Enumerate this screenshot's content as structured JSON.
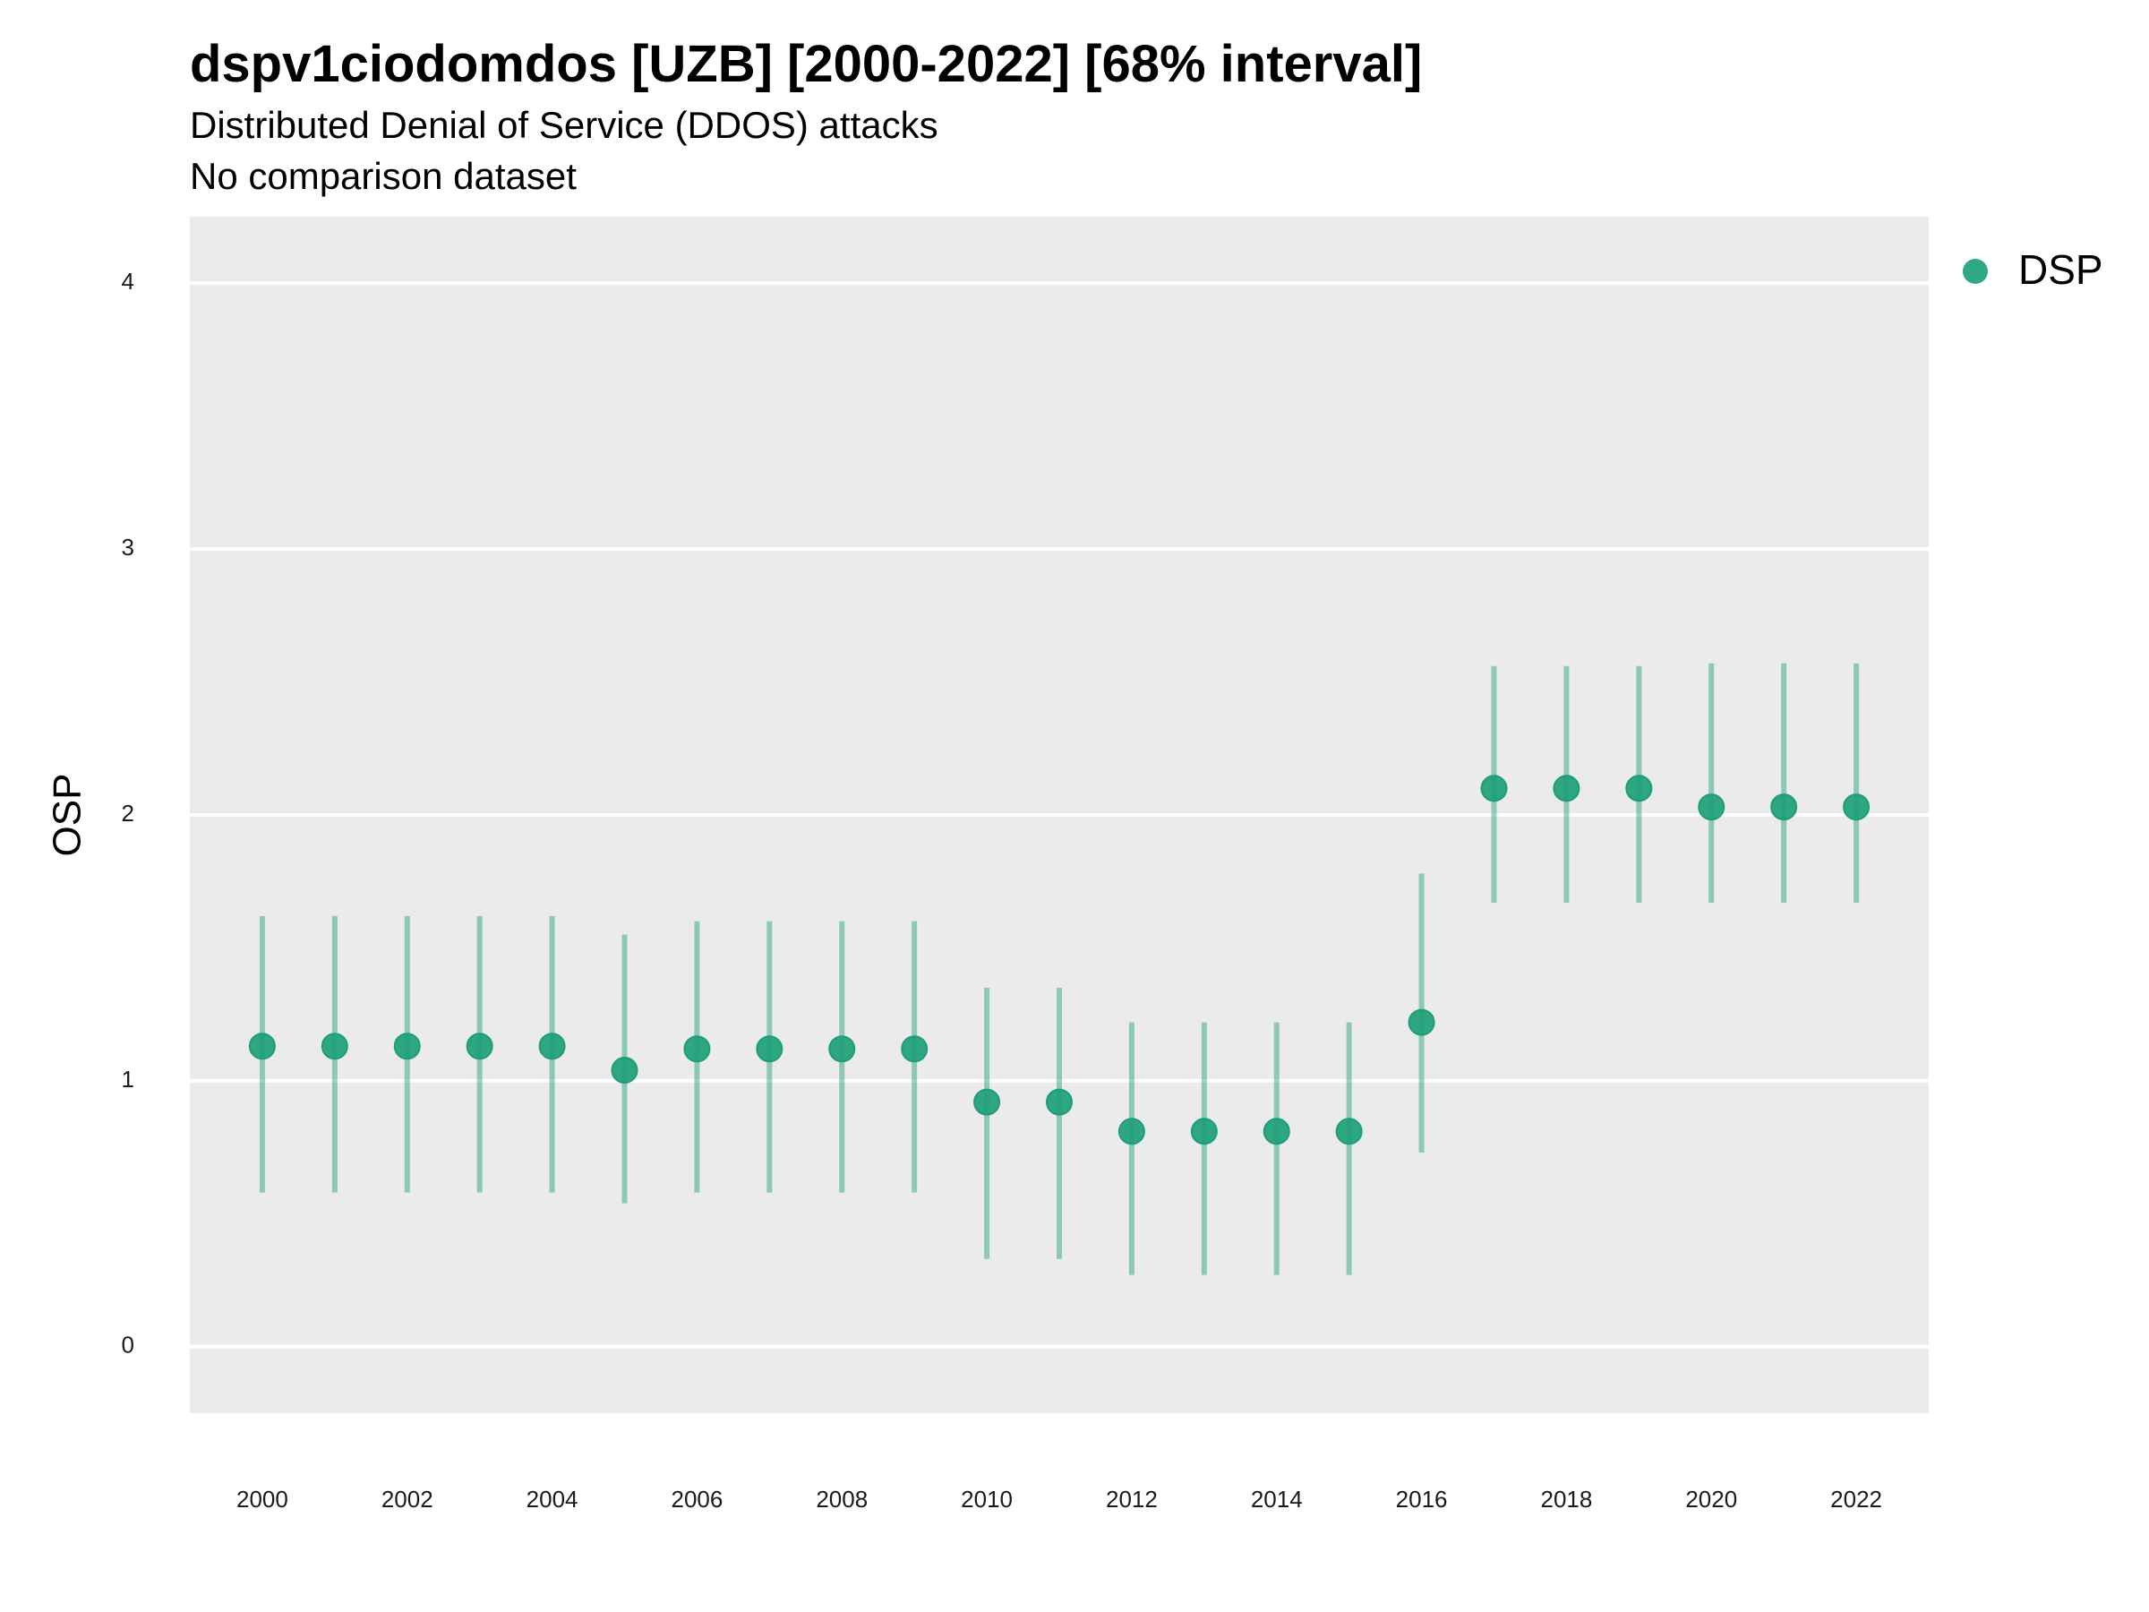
{
  "chart_data": {
    "type": "scatter",
    "title": "dspv1ciodomdos [UZB] [2000-2022] [68% interval]",
    "subtitle": "Distributed Denial of Service (DDOS) attacks",
    "subtitle2": "No comparison dataset",
    "xlabel": "",
    "ylabel": "OSP",
    "ylim": [
      -0.25,
      4.25
    ],
    "yticks": [
      "0",
      "1",
      "2",
      "3",
      "4"
    ],
    "xticks": [
      "2000",
      "2002",
      "2004",
      "2006",
      "2008",
      "2010",
      "2012",
      "2014",
      "2016",
      "2018",
      "2020",
      "2022"
    ],
    "grid": true,
    "legend_position": "right",
    "series": [
      {
        "name": "DSP",
        "color": "#1b9e77",
        "x": [
          2000,
          2001,
          2002,
          2003,
          2004,
          2005,
          2006,
          2007,
          2008,
          2009,
          2010,
          2011,
          2012,
          2013,
          2014,
          2015,
          2016,
          2017,
          2018,
          2019,
          2020,
          2021,
          2022
        ],
        "y": [
          1.13,
          1.13,
          1.13,
          1.13,
          1.13,
          1.04,
          1.12,
          1.12,
          1.12,
          1.12,
          0.92,
          0.92,
          0.81,
          0.81,
          0.81,
          0.81,
          1.22,
          2.1,
          2.1,
          2.1,
          2.03,
          2.03,
          2.03
        ],
        "lower": [
          0.58,
          0.58,
          0.58,
          0.58,
          0.58,
          0.54,
          0.58,
          0.58,
          0.58,
          0.58,
          0.33,
          0.33,
          0.27,
          0.27,
          0.27,
          0.27,
          0.73,
          1.67,
          1.67,
          1.67,
          1.67,
          1.67,
          1.67
        ],
        "upper": [
          1.62,
          1.62,
          1.62,
          1.62,
          1.62,
          1.55,
          1.6,
          1.6,
          1.6,
          1.6,
          1.35,
          1.35,
          1.22,
          1.22,
          1.22,
          1.22,
          1.78,
          2.56,
          2.56,
          2.56,
          2.57,
          2.57,
          2.57
        ]
      }
    ]
  }
}
